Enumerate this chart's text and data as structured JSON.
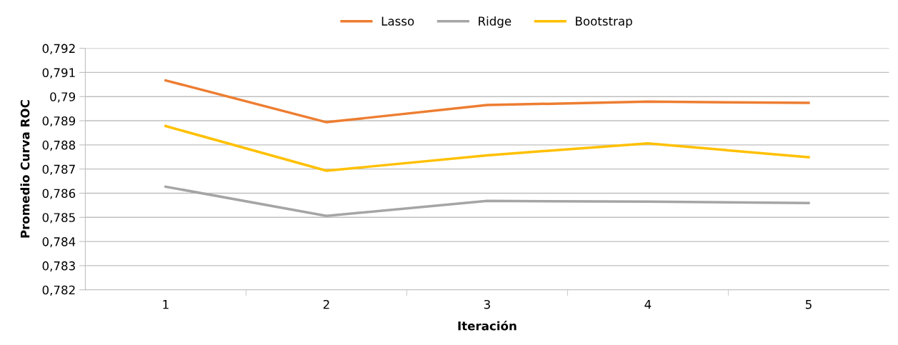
{
  "chart_data": {
    "type": "line",
    "xlabel": "Iteración",
    "ylabel": "Promedio Curva ROC",
    "categories": [
      "1",
      "2",
      "3",
      "4",
      "5"
    ],
    "series": [
      {
        "name": "Lasso",
        "color": "#ed7d31",
        "values": [
          0.79067,
          0.78894,
          0.78965,
          0.78979,
          0.78974
        ]
      },
      {
        "name": "Ridge",
        "color": "#a5a5a5",
        "values": [
          0.78627,
          0.78506,
          0.78568,
          0.78565,
          0.78559
        ]
      },
      {
        "name": "Bootstrap",
        "color": "#ffc000",
        "values": [
          0.78878,
          0.78693,
          0.78757,
          0.78806,
          0.78749
        ]
      }
    ],
    "ylim": [
      0.782,
      0.792
    ],
    "yticks": [
      {
        "value": 0.782,
        "label": "0,782"
      },
      {
        "value": 0.783,
        "label": "0,783"
      },
      {
        "value": 0.784,
        "label": "0,784"
      },
      {
        "value": 0.785,
        "label": "0,785"
      },
      {
        "value": 0.786,
        "label": "0,786"
      },
      {
        "value": 0.787,
        "label": "0,787"
      },
      {
        "value": 0.788,
        "label": "0,788"
      },
      {
        "value": 0.789,
        "label": "0,789"
      },
      {
        "value": 0.79,
        "label": "0,79"
      },
      {
        "value": 0.791,
        "label": "0,791"
      },
      {
        "value": 0.792,
        "label": "0,792"
      }
    ],
    "grid": "y",
    "legend": "top",
    "marker": "none",
    "line_style": "solid"
  }
}
